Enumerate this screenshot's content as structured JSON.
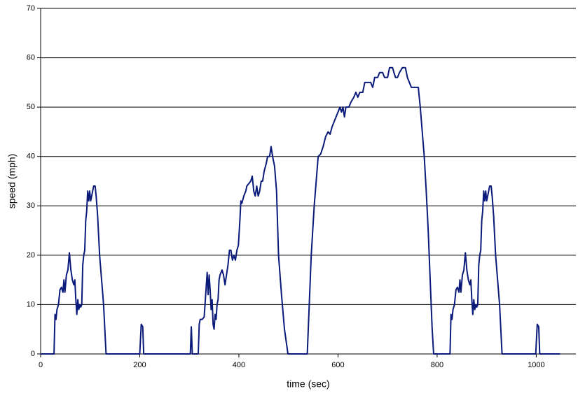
{
  "chart_data": {
    "type": "line",
    "x_label": "time (sec)",
    "y_label": "speed (mph)",
    "x": [
      0,
      27,
      29,
      31,
      33,
      36,
      39,
      42,
      45,
      47,
      49,
      52,
      55,
      58,
      61,
      64,
      67,
      69,
      71,
      73,
      75,
      77,
      79,
      81,
      83,
      85,
      87,
      89,
      91,
      93,
      95,
      97,
      99,
      101,
      103,
      105,
      107,
      110,
      112,
      115,
      119,
      123,
      127,
      132,
      200,
      203,
      206,
      208,
      302,
      304,
      306,
      318,
      320,
      322,
      326,
      330,
      333,
      336,
      338,
      340,
      342,
      344,
      346,
      348,
      350,
      352,
      354,
      356,
      358,
      360,
      362,
      366,
      369,
      372,
      375,
      378,
      381,
      384,
      387,
      390,
      393,
      396,
      399,
      402,
      404,
      406,
      410,
      414,
      416,
      420,
      424,
      427,
      430,
      433,
      436,
      439,
      442,
      445,
      448,
      451,
      455,
      458,
      462,
      465,
      468,
      472,
      476,
      480,
      486,
      492,
      499,
      538,
      542,
      546,
      552,
      560,
      565,
      570,
      575,
      580,
      584,
      588,
      592,
      596,
      600,
      604,
      607,
      610,
      613,
      616,
      622,
      626,
      632,
      636,
      640,
      644,
      650,
      654,
      666,
      670,
      674,
      680,
      684,
      690,
      694,
      700,
      704,
      710,
      713,
      716,
      720,
      724,
      730,
      736,
      740,
      744,
      748,
      762,
      766,
      770,
      774,
      778,
      782,
      786,
      790,
      793,
      826,
      828,
      830,
      832,
      835,
      838,
      841,
      844,
      846,
      848,
      851,
      854,
      857,
      860,
      863,
      866,
      868,
      870,
      872,
      874,
      876,
      878,
      880,
      882,
      884,
      886,
      888,
      890,
      892,
      894,
      896,
      898,
      900,
      902,
      904,
      906,
      909,
      911,
      914,
      918,
      922,
      926,
      931,
      999,
      1002,
      1005,
      1007,
      1048
    ],
    "series": [
      {
        "color": "#0a1a7a",
        "values": [
          0,
          0,
          8,
          7,
          9,
          10,
          13,
          13.5,
          12.5,
          15,
          12.5,
          16,
          17,
          20.5,
          17,
          15,
          14,
          15,
          11,
          8,
          11,
          9,
          10,
          9.5,
          10,
          18,
          20,
          21,
          27,
          29,
          33,
          31,
          33,
          31,
          32,
          33,
          34,
          34,
          32,
          28,
          20,
          15,
          10,
          0,
          0,
          6,
          5.5,
          0,
          0,
          5.5,
          0,
          0,
          6,
          7,
          7,
          7.5,
          12,
          16.5,
          12,
          16,
          13,
          9,
          11,
          6,
          5,
          8,
          7,
          10,
          11,
          15,
          16,
          17,
          16,
          14,
          16,
          18,
          21,
          21,
          19,
          20,
          19,
          21,
          22,
          27,
          31,
          30.5,
          32,
          33,
          34,
          34.5,
          35,
          36,
          33,
          32,
          34,
          32,
          33,
          35,
          35,
          37,
          38.5,
          40,
          40,
          42,
          40,
          38,
          33,
          20,
          12,
          5,
          0,
          0,
          10,
          20,
          30,
          40,
          40.5,
          42,
          44,
          45,
          44.5,
          46,
          47,
          48,
          49,
          50,
          49,
          50,
          48,
          50,
          50,
          51,
          52,
          53,
          52,
          53,
          53,
          55,
          55,
          54,
          56,
          56,
          57,
          57,
          56,
          56,
          58,
          58,
          57,
          56,
          56,
          57,
          58,
          58,
          56,
          55,
          54,
          54,
          50,
          45,
          40,
          33,
          25,
          15,
          5,
          0,
          0,
          8,
          7,
          9,
          10,
          13,
          13.5,
          12.5,
          15,
          12.5,
          16,
          17,
          20.5,
          17,
          15,
          14,
          15,
          11,
          8,
          11,
          9,
          10,
          9.5,
          10,
          18,
          20,
          21,
          27,
          29,
          33,
          31,
          33,
          31,
          32,
          33,
          34,
          34,
          32,
          28,
          20,
          15,
          10,
          0,
          0,
          6,
          5.5,
          0,
          0
        ]
      }
    ],
    "xlim": [
      0,
      1080
    ],
    "ylim": [
      0,
      70
    ],
    "xticks": [
      0,
      200,
      400,
      600,
      800,
      1000
    ],
    "yticks": [
      0,
      10,
      20,
      30,
      40,
      50,
      60,
      70
    ],
    "grid": true
  }
}
